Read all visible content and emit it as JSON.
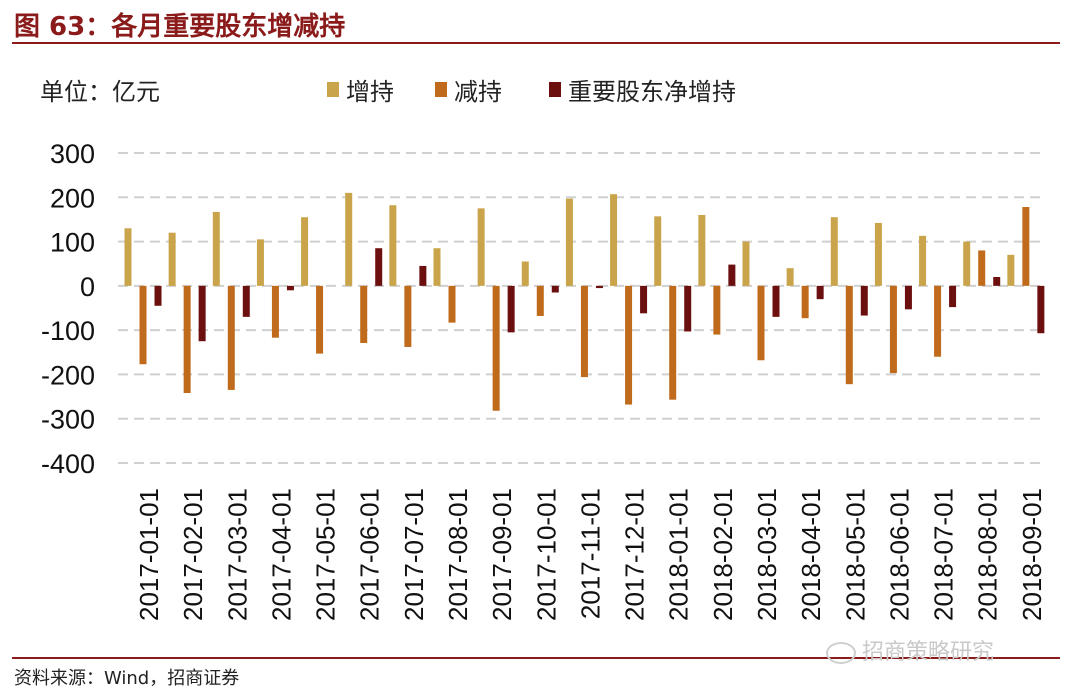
{
  "figure": {
    "title": "图 63：各月重要股东增减持",
    "source": "资料来源：Wind，招商证券",
    "watermark": "招商策略研究",
    "unit_label": "单位：亿元"
  },
  "colors": {
    "accent": "#8b1a1a",
    "series": [
      "#c9a44a",
      "#c06a1c",
      "#6b0f0f"
    ],
    "grid": "#d0d0d0"
  },
  "chart_data": {
    "type": "bar",
    "title": "",
    "xlabel": "",
    "ylabel": "",
    "ylim": [
      -400,
      300
    ],
    "yticks": [
      300,
      200,
      100,
      0,
      -100,
      -200,
      -300,
      -400
    ],
    "grid": true,
    "legend_position": "top",
    "categories": [
      "2017-01-01",
      "2017-02-01",
      "2017-03-01",
      "2017-04-01",
      "2017-05-01",
      "2017-06-01",
      "2017-07-01",
      "2017-08-01",
      "2017-09-01",
      "2017-10-01",
      "2017-11-01",
      "2017-12-01",
      "2018-01-01",
      "2018-02-01",
      "2018-03-01",
      "2018-04-01",
      "2018-05-01",
      "2018-06-01",
      "2018-07-01",
      "2018-08-01",
      "2018-09-01"
    ],
    "series": [
      {
        "name": "增持",
        "values": [
          130,
          120,
          167,
          105,
          155,
          210,
          182,
          85,
          175,
          55,
          197,
          207,
          157,
          160,
          100,
          40,
          155,
          142,
          113,
          100,
          70
        ]
      },
      {
        "name": "减持",
        "values": [
          -177,
          -242,
          -235,
          -117,
          -153,
          -129,
          -138,
          -83,
          -282,
          -68,
          -206,
          -268,
          -257,
          -110,
          -168,
          -73,
          -222,
          -197,
          -160,
          80,
          178
        ]
      },
      {
        "name": "重要股东净增持",
        "values": [
          -45,
          -125,
          -70,
          -10,
          0,
          85,
          45,
          0,
          -105,
          -15,
          -5,
          -62,
          -103,
          48,
          -70,
          -30,
          -67,
          -53,
          -48,
          20,
          -107
        ]
      }
    ]
  }
}
